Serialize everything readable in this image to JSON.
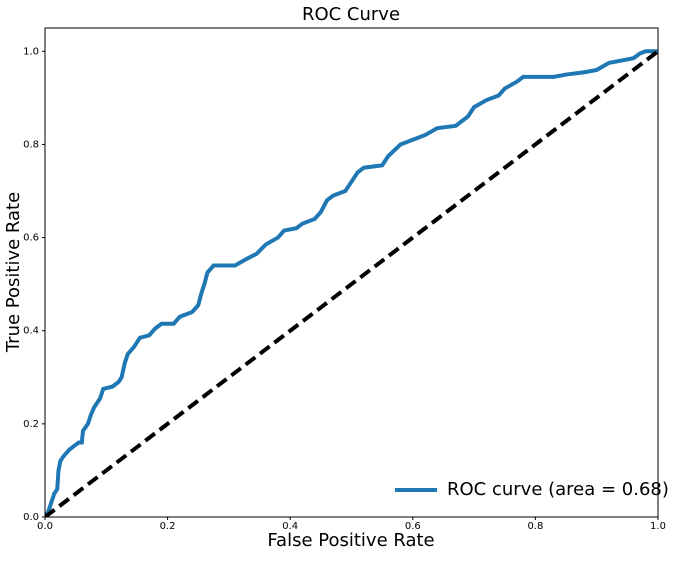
{
  "chart_data": {
    "type": "line",
    "title": "ROC Curve",
    "x_label": "False Positive Rate",
    "y_label": "True Positive Rate",
    "xlim": [
      0,
      1
    ],
    "ylim": [
      0,
      1.05
    ],
    "xticks": [
      {
        "value": 0,
        "label": "0.0"
      },
      0.2,
      0.4,
      0.6,
      0.8,
      {
        "value": 1,
        "label": "1.0"
      }
    ],
    "yticks": [
      {
        "value": 0,
        "label": "0.0"
      },
      0.2,
      0.4,
      0.6,
      0.8,
      {
        "value": 1,
        "label": "1.0"
      }
    ],
    "legend": "lower right",
    "grid": false,
    "series": [
      {
        "name": "ROC curve (area = 0.68)",
        "color": "#1f77b4",
        "style": "solid",
        "x": [
          0,
          0.005,
          0.01,
          0.015,
          0.02,
          0.022,
          0.025,
          0.03,
          0.04,
          0.05,
          0.055,
          0.06,
          0.062,
          0.07,
          0.075,
          0.08,
          0.09,
          0.095,
          0.11,
          0.12,
          0.125,
          0.13,
          0.135,
          0.145,
          0.155,
          0.17,
          0.18,
          0.19,
          0.21,
          0.22,
          0.24,
          0.25,
          0.255,
          0.26,
          0.265,
          0.275,
          0.31,
          0.33,
          0.345,
          0.36,
          0.38,
          0.39,
          0.41,
          0.42,
          0.44,
          0.45,
          0.46,
          0.47,
          0.49,
          0.5,
          0.51,
          0.52,
          0.55,
          0.56,
          0.58,
          0.6,
          0.62,
          0.64,
          0.67,
          0.69,
          0.7,
          0.72,
          0.74,
          0.75,
          0.77,
          0.78,
          0.83,
          0.85,
          0.88,
          0.9,
          0.92,
          0.96,
          0.97,
          0.98,
          1.0
        ],
        "values": [
          0,
          0.01,
          0.03,
          0.05,
          0.06,
          0.1,
          0.12,
          0.13,
          0.145,
          0.155,
          0.16,
          0.16,
          0.185,
          0.2,
          0.22,
          0.235,
          0.255,
          0.275,
          0.28,
          0.29,
          0.3,
          0.33,
          0.35,
          0.365,
          0.385,
          0.39,
          0.405,
          0.415,
          0.415,
          0.43,
          0.44,
          0.455,
          0.48,
          0.5,
          0.525,
          0.54,
          0.54,
          0.555,
          0.565,
          0.585,
          0.6,
          0.615,
          0.62,
          0.63,
          0.64,
          0.655,
          0.68,
          0.69,
          0.7,
          0.72,
          0.74,
          0.75,
          0.755,
          0.775,
          0.8,
          0.81,
          0.82,
          0.835,
          0.84,
          0.86,
          0.88,
          0.895,
          0.905,
          0.92,
          0.935,
          0.945,
          0.945,
          0.95,
          0.955,
          0.96,
          0.975,
          0.985,
          0.995,
          1.0,
          1.0
        ]
      },
      {
        "color": "#000000",
        "style": "dashed",
        "x": [
          0,
          1
        ],
        "values": [
          0,
          1
        ]
      }
    ]
  }
}
